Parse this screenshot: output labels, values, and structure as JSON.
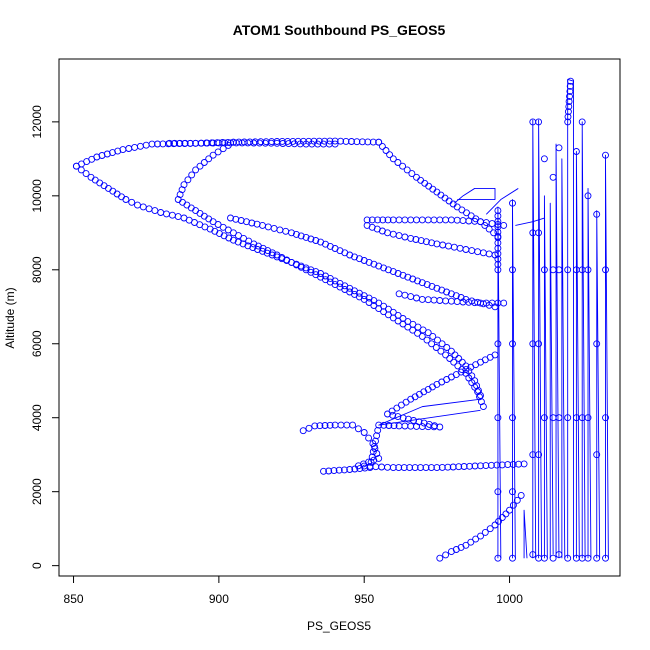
{
  "chart_data": {
    "type": "scatter",
    "title": "ATOM1 Southbound PS_GEOS5",
    "xlabel": "PS_GEOS5",
    "ylabel": "Altitude (m)",
    "xlim": [
      845,
      1038
    ],
    "ylim": [
      -280,
      13700
    ],
    "xticks": [
      850,
      900,
      950,
      1000
    ],
    "yticks": [
      0,
      2000,
      4000,
      6000,
      8000,
      10000,
      12000
    ],
    "grid": false,
    "legend": "none",
    "point_color": "#0000ff",
    "marker": "open-circle",
    "series": [
      {
        "values": [
          [
            851,
            10800
          ],
          [
            856,
            10500
          ],
          [
            862,
            10200
          ],
          [
            868,
            9900
          ],
          [
            872,
            9750
          ],
          [
            880,
            9550
          ],
          [
            888,
            9400
          ],
          [
            897,
            9100
          ],
          [
            905,
            8800
          ],
          [
            915,
            8500
          ],
          [
            925,
            8200
          ],
          [
            935,
            7900
          ],
          [
            945,
            7500
          ],
          [
            955,
            7100
          ],
          [
            965,
            6600
          ],
          [
            972,
            6300
          ],
          [
            980,
            5800
          ],
          [
            985,
            5400
          ],
          [
            988,
            5000
          ],
          [
            990,
            4600
          ],
          [
            851,
            10800
          ],
          [
            858,
            11050
          ],
          [
            867,
            11250
          ],
          [
            877,
            11400
          ],
          [
            892,
            11420
          ],
          [
            905,
            11450
          ],
          [
            920,
            11470
          ],
          [
            940,
            11480
          ],
          [
            955,
            11450
          ],
          [
            955,
            11450
          ],
          [
            960,
            11000
          ],
          [
            968,
            10500
          ],
          [
            975,
            10100
          ],
          [
            982,
            9700
          ],
          [
            990,
            9300
          ],
          [
            996,
            8900
          ],
          [
            883,
            11420
          ],
          [
            892,
            11420
          ],
          [
            900,
            11430
          ],
          [
            910,
            11430
          ],
          [
            920,
            11420
          ],
          [
            930,
            11400
          ],
          [
            940,
            11400
          ],
          [
            905,
            11450
          ],
          [
            898,
            11100
          ],
          [
            892,
            10700
          ],
          [
            888,
            10300
          ],
          [
            886,
            9900
          ],
          [
            892,
            9600
          ],
          [
            898,
            9300
          ],
          [
            905,
            9000
          ],
          [
            912,
            8700
          ],
          [
            920,
            8400
          ],
          [
            930,
            8000
          ],
          [
            940,
            7600
          ],
          [
            950,
            7200
          ],
          [
            960,
            6700
          ],
          [
            970,
            6200
          ],
          [
            978,
            5700
          ],
          [
            985,
            5200
          ],
          [
            989,
            4700
          ],
          [
            991,
            4300
          ],
          [
            904,
            9400
          ],
          [
            915,
            9200
          ],
          [
            925,
            9000
          ],
          [
            935,
            8750
          ],
          [
            945,
            8400
          ],
          [
            955,
            8100
          ],
          [
            965,
            7800
          ],
          [
            975,
            7500
          ],
          [
            985,
            7200
          ],
          [
            995,
            7000
          ],
          [
            951,
            9350
          ],
          [
            960,
            9350
          ],
          [
            970,
            9350
          ],
          [
            980,
            9350
          ],
          [
            990,
            9300
          ],
          [
            998,
            9200
          ],
          [
            951,
            9200
          ],
          [
            958,
            9000
          ],
          [
            966,
            8850
          ],
          [
            975,
            8700
          ],
          [
            985,
            8550
          ],
          [
            995,
            8400
          ],
          [
            962,
            7350
          ],
          [
            970,
            7200
          ],
          [
            980,
            7150
          ],
          [
            990,
            7100
          ],
          [
            998,
            7100
          ],
          [
            929,
            3650
          ],
          [
            933,
            3780
          ],
          [
            940,
            3800
          ],
          [
            946,
            3800
          ],
          [
            950,
            3600
          ],
          [
            953,
            3300
          ],
          [
            955,
            2900
          ],
          [
            948,
            2700
          ],
          [
            960,
            2650
          ],
          [
            975,
            2650
          ],
          [
            990,
            2700
          ],
          [
            1005,
            2750
          ],
          [
            936,
            2550
          ],
          [
            945,
            2600
          ],
          [
            952,
            2650
          ],
          [
            955,
            3800
          ],
          [
            962,
            3780
          ],
          [
            970,
            3760
          ],
          [
            976,
            3750
          ],
          [
            958,
            4100
          ],
          [
            966,
            4500
          ],
          [
            975,
            4900
          ],
          [
            985,
            5300
          ],
          [
            995,
            5700
          ],
          [
            976,
            200
          ],
          [
            980,
            380
          ],
          [
            985,
            550
          ],
          [
            990,
            800
          ],
          [
            995,
            1100
          ],
          [
            1000,
            1500
          ],
          [
            1004,
            1900
          ],
          [
            996,
            200
          ],
          [
            996,
            2000
          ],
          [
            996,
            4000
          ],
          [
            996,
            6000
          ],
          [
            996,
            8000
          ],
          [
            996,
            9600
          ],
          [
            1001,
            200
          ],
          [
            1001,
            2000
          ],
          [
            1001,
            4000
          ],
          [
            1001,
            6000
          ],
          [
            1001,
            8000
          ],
          [
            1001,
            9800
          ],
          [
            1008,
            300
          ],
          [
            1008,
            3000
          ],
          [
            1008,
            6000
          ],
          [
            1008,
            9000
          ],
          [
            1008,
            12000
          ],
          [
            1010,
            200
          ],
          [
            1010,
            3000
          ],
          [
            1010,
            6000
          ],
          [
            1010,
            9000
          ],
          [
            1010,
            12000
          ],
          [
            1012,
            200
          ],
          [
            1012,
            4000
          ],
          [
            1012,
            8000
          ],
          [
            1012,
            11000
          ],
          [
            1015,
            200
          ],
          [
            1015,
            4000
          ],
          [
            1015,
            8000
          ],
          [
            1015,
            10500
          ],
          [
            1017,
            300
          ],
          [
            1017,
            4000
          ],
          [
            1017,
            8000
          ],
          [
            1017,
            11300
          ],
          [
            1020,
            200
          ],
          [
            1020,
            4000
          ],
          [
            1020,
            8000
          ],
          [
            1020,
            12000
          ],
          [
            1021,
            13100
          ],
          [
            1023,
            200
          ],
          [
            1023,
            4000
          ],
          [
            1023,
            8000
          ],
          [
            1023,
            11200
          ],
          [
            1025,
            200
          ],
          [
            1025,
            4000
          ],
          [
            1025,
            8000
          ],
          [
            1025,
            12000
          ],
          [
            1027,
            200
          ],
          [
            1027,
            4000
          ],
          [
            1027,
            8000
          ],
          [
            1027,
            10000
          ],
          [
            1030,
            200
          ],
          [
            1030,
            3000
          ],
          [
            1030,
            6000
          ],
          [
            1030,
            9500
          ],
          [
            1033,
            200
          ],
          [
            1033,
            4000
          ],
          [
            1033,
            8000
          ],
          [
            1033,
            11100
          ]
        ]
      }
    ],
    "dense_tracks": [
      [
        [
          996,
          200
        ],
        [
          996,
          9700
        ],
        [
          997,
          200
        ]
      ],
      [
        [
          1001,
          200
        ],
        [
          1001,
          9900
        ],
        [
          1002,
          200
        ]
      ],
      [
        [
          1005,
          200
        ],
        [
          1005,
          1500
        ],
        [
          1006,
          200
        ]
      ],
      [
        [
          1008,
          200
        ],
        [
          1008,
          12050
        ],
        [
          1009,
          200
        ]
      ],
      [
        [
          1010,
          200
        ],
        [
          1010,
          12050
        ],
        [
          1011,
          200
        ]
      ],
      [
        [
          1012,
          200
        ],
        [
          1012,
          10000
        ],
        [
          1013,
          200
        ]
      ],
      [
        [
          1014,
          200
        ],
        [
          1014,
          9800
        ],
        [
          1015,
          300
        ]
      ],
      [
        [
          1016,
          200
        ],
        [
          1016,
          11400
        ],
        [
          1017,
          200
        ]
      ],
      [
        [
          1018,
          200
        ],
        [
          1018,
          11000
        ],
        [
          1019,
          200
        ]
      ],
      [
        [
          1020,
          200
        ],
        [
          1020,
          13150
        ],
        [
          1022,
          13100
        ],
        [
          1022,
          200
        ]
      ],
      [
        [
          1023,
          200
        ],
        [
          1023,
          11200
        ],
        [
          1024,
          200
        ]
      ],
      [
        [
          1025,
          200
        ],
        [
          1025,
          12000
        ],
        [
          1026,
          200
        ]
      ],
      [
        [
          1027,
          200
        ],
        [
          1027,
          10200
        ],
        [
          1028,
          200
        ]
      ],
      [
        [
          1030,
          200
        ],
        [
          1030,
          9600
        ],
        [
          1031,
          200
        ]
      ],
      [
        [
          1033,
          200
        ],
        [
          1033,
          11100
        ],
        [
          1034,
          200
        ]
      ],
      [
        [
          981,
          9800
        ],
        [
          984,
          10000
        ],
        [
          988,
          10200
        ],
        [
          995,
          10200
        ],
        [
          995,
          9900
        ],
        [
          982,
          9900
        ]
      ],
      [
        [
          992,
          9500
        ],
        [
          997,
          9900
        ],
        [
          1003,
          10200
        ]
      ],
      [
        [
          1002,
          9200
        ],
        [
          1008,
          9300
        ],
        [
          1012,
          9400
        ]
      ],
      [
        [
          990,
          4500
        ],
        [
          970,
          4300
        ],
        [
          955,
          3800
        ],
        [
          990,
          4200
        ]
      ]
    ]
  }
}
